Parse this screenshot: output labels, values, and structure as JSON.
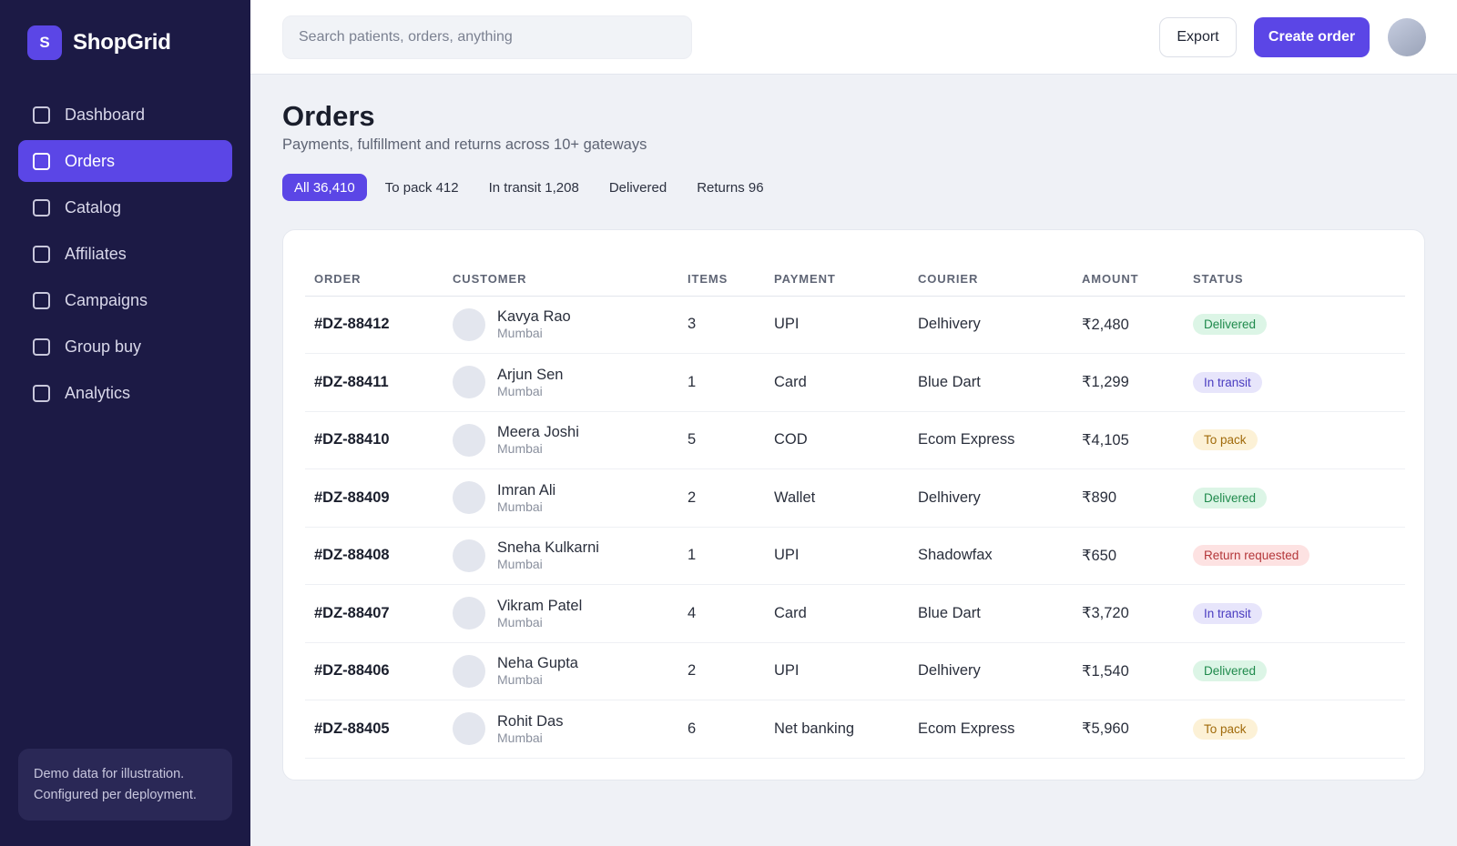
{
  "app": {
    "logo_letter": "S",
    "name": "ShopGrid"
  },
  "sidebar": {
    "items": [
      {
        "label": "Dashboard",
        "active": false
      },
      {
        "label": "Orders",
        "active": true
      },
      {
        "label": "Catalog",
        "active": false
      },
      {
        "label": "Affiliates",
        "active": false
      },
      {
        "label": "Campaigns",
        "active": false
      },
      {
        "label": "Group buy",
        "active": false
      },
      {
        "label": "Analytics",
        "active": false
      }
    ],
    "note_line1": "Demo data for illustration.",
    "note_line2": "Configured per deployment."
  },
  "topbar": {
    "search_placeholder": "Search patients, orders, anything",
    "export_label": "Export",
    "create_label": "Create order"
  },
  "page": {
    "title": "Orders",
    "subtitle": "Payments, fulfillment and returns across 10+ gateways"
  },
  "tabs": [
    {
      "label": "All 36,410",
      "active": true
    },
    {
      "label": "To pack 412",
      "active": false
    },
    {
      "label": "In transit 1,208",
      "active": false
    },
    {
      "label": "Delivered",
      "active": false
    },
    {
      "label": "Returns 96",
      "active": false
    }
  ],
  "table": {
    "columns": [
      "ORDER",
      "CUSTOMER",
      "ITEMS",
      "PAYMENT",
      "COURIER",
      "AMOUNT",
      "STATUS"
    ],
    "rows": [
      {
        "order": "#DZ-88412",
        "name": "Kavya Rao",
        "city": "Mumbai",
        "items": "3",
        "payment": "UPI",
        "courier": "Delhivery",
        "amount": "₹2,480",
        "status": "Delivered"
      },
      {
        "order": "#DZ-88411",
        "name": "Arjun Sen",
        "city": "Mumbai",
        "items": "1",
        "payment": "Card",
        "courier": "Blue Dart",
        "amount": "₹1,299",
        "status": "In transit"
      },
      {
        "order": "#DZ-88410",
        "name": "Meera Joshi",
        "city": "Mumbai",
        "items": "5",
        "payment": "COD",
        "courier": "Ecom Express",
        "amount": "₹4,105",
        "status": "To pack"
      },
      {
        "order": "#DZ-88409",
        "name": "Imran Ali",
        "city": "Mumbai",
        "items": "2",
        "payment": "Wallet",
        "courier": "Delhivery",
        "amount": "₹890",
        "status": "Delivered"
      },
      {
        "order": "#DZ-88408",
        "name": "Sneha Kulkarni",
        "city": "Mumbai",
        "items": "1",
        "payment": "UPI",
        "courier": "Shadowfax",
        "amount": "₹650",
        "status": "Return requested"
      },
      {
        "order": "#DZ-88407",
        "name": "Vikram Patel",
        "city": "Mumbai",
        "items": "4",
        "payment": "Card",
        "courier": "Blue Dart",
        "amount": "₹3,720",
        "status": "In transit"
      },
      {
        "order": "#DZ-88406",
        "name": "Neha Gupta",
        "city": "Mumbai",
        "items": "2",
        "payment": "UPI",
        "courier": "Delhivery",
        "amount": "₹1,540",
        "status": "Delivered"
      },
      {
        "order": "#DZ-88405",
        "name": "Rohit Das",
        "city": "Mumbai",
        "items": "6",
        "payment": "Net banking",
        "courier": "Ecom Express",
        "amount": "₹5,960",
        "status": "To pack"
      }
    ]
  },
  "status_colors": {
    "Delivered": {
      "bg": "#dcf5e6",
      "fg": "#1f8a4c"
    },
    "In transit": {
      "bg": "#e7e5fb",
      "fg": "#4a3cc0"
    },
    "To pack": {
      "bg": "#fcf1d6",
      "fg": "#a06a0a"
    },
    "Return requested": {
      "bg": "#fde2e2",
      "fg": "#b4373a"
    }
  },
  "accent_color": "#5b46e6"
}
